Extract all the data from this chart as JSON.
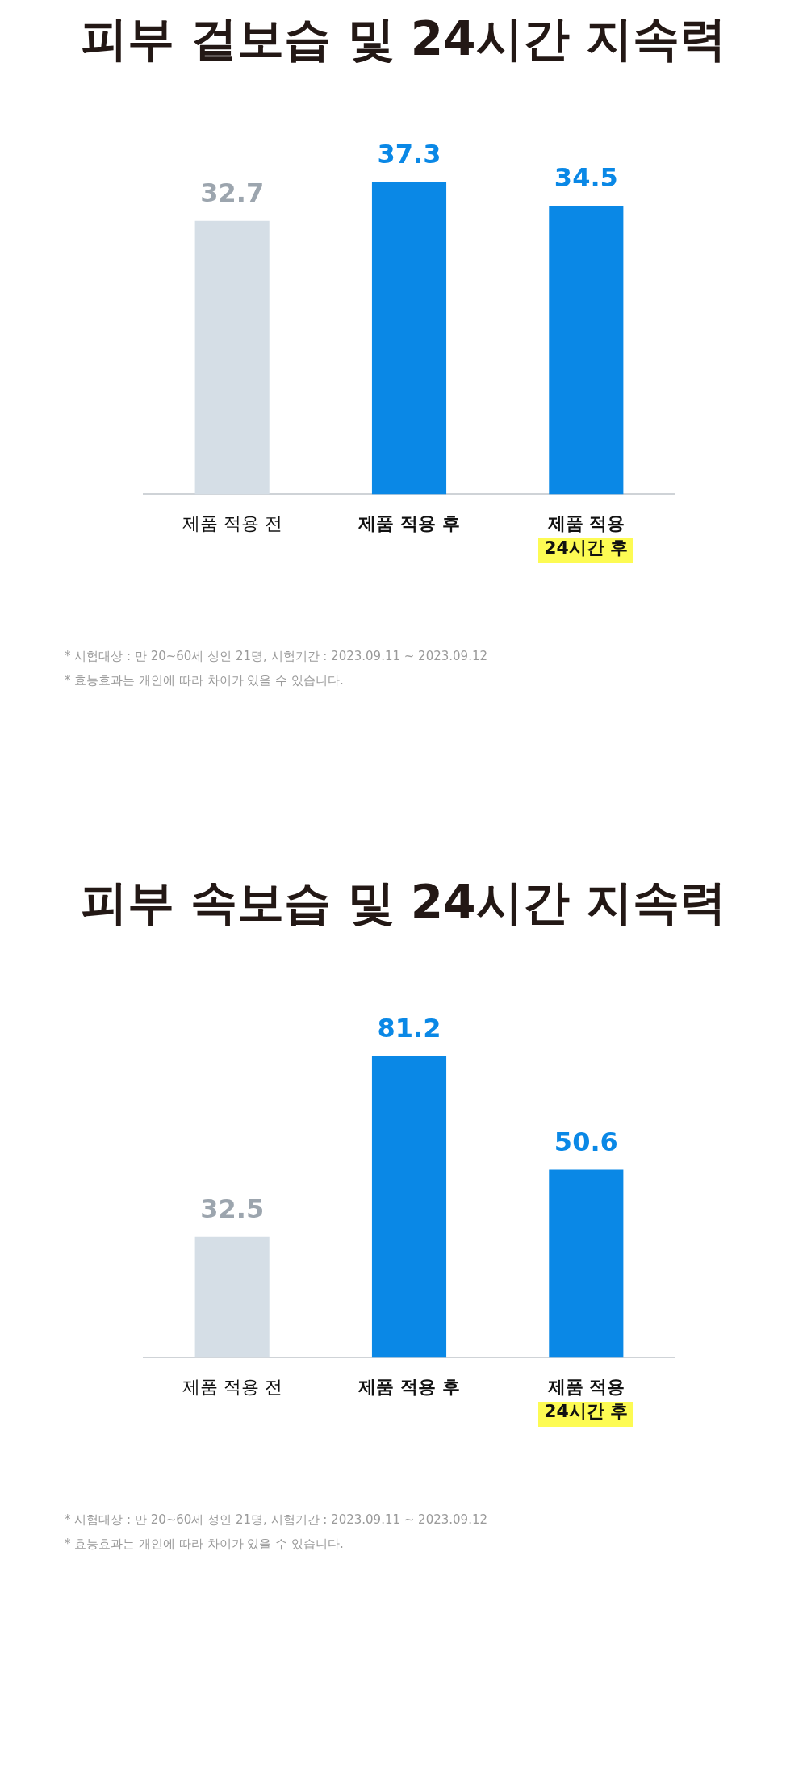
{
  "chart_data": [
    {
      "type": "bar",
      "title": "피부 겉보습 및 24시간 지속력",
      "categories": [
        "제품 적용 전",
        "제품 적용 후",
        "제품 적용\n24시간 후"
      ],
      "values": [
        32.7,
        37.3,
        34.5
      ],
      "colors": [
        "#d5dee6",
        "#0a88e6",
        "#0a88e6"
      ],
      "data_labels": true,
      "grid": false,
      "legend": false,
      "annotations": [
        "* 시험대상 : 만 20~60세 성인 21명, 시험기간 : 2023.09.11 ~ 2023.09.12",
        "* 효능효과는 개인에 따라 차이가 있을 수 있습니다."
      ]
    },
    {
      "type": "bar",
      "title": "피부 속보습 및 24시간 지속력",
      "categories": [
        "제품 적용 전",
        "제품 적용 후",
        "제품 적용\n24시간 후"
      ],
      "values": [
        32.5,
        81.2,
        50.6
      ],
      "colors": [
        "#d5dee6",
        "#0a88e6",
        "#0a88e6"
      ],
      "data_labels": true,
      "grid": false,
      "legend": false,
      "annotations": [
        "* 시험대상 : 만 20~60세 성인 21명, 시험기간 : 2023.09.11 ~ 2023.09.12",
        "* 효능효과는 개인에 따라 차이가 있을 수 있습니다."
      ]
    }
  ]
}
